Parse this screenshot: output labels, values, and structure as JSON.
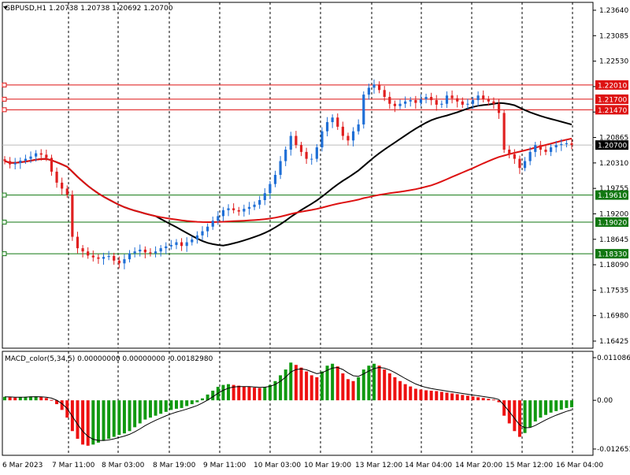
{
  "header": {
    "symbol_info": "GBPUSD,H1  1.20738 1.20738 1.20692 1.20700",
    "indicator_info": "MACD_color(5,34,5) 0.00000000 0.00000000 -0.00182980"
  },
  "colors": {
    "background": "#ffffff",
    "grid": "#000000",
    "bull_candle": "#1f6fd6",
    "bear_candle": "#e02020",
    "ma_slow": "#000000",
    "ma_long": "#dd1111",
    "resistance_line": "#dd1111",
    "support_line": "#117711",
    "hist_up": "#119911",
    "hist_down": "#ee1111",
    "signal": "#000000"
  },
  "price_scale": {
    "ticks": [
      "1.23640",
      "1.23085",
      "1.22530",
      "1.21975",
      "1.21420",
      "1.20865",
      "1.20310",
      "1.19755",
      "1.19200",
      "1.18645",
      "1.18090",
      "1.17535",
      "1.16980",
      "1.16425"
    ],
    "current_label": "1.20700",
    "current_value": 1.207
  },
  "levels": [
    {
      "value": 1.2201,
      "label": "1.22010",
      "kind": "resistance"
    },
    {
      "value": 1.217,
      "label": "1.21700",
      "kind": "resistance"
    },
    {
      "value": 1.2147,
      "label": "1.21470",
      "kind": "resistance"
    },
    {
      "value": 1.1961,
      "label": "1.19610",
      "kind": "support"
    },
    {
      "value": 1.1902,
      "label": "1.19020",
      "kind": "support"
    },
    {
      "value": 1.1833,
      "label": "1.18330",
      "kind": "support"
    }
  ],
  "macd_scale": {
    "ticks": [
      "0.0110869",
      "0.00",
      "-0.0126537"
    ],
    "values": [
      0.0110869,
      0.0,
      -0.0126537
    ]
  },
  "time_axis": {
    "labels": [
      "6 Mar 2023",
      "7 Mar 11:00",
      "8 Mar 03:00",
      "8 Mar 19:00",
      "9 Mar 11:00",
      "10 Mar 03:00",
      "10 Mar 19:00",
      "13 Mar 12:00",
      "14 Mar 04:00",
      "14 Mar 20:00",
      "15 Mar 12:00",
      "16 Mar 04:00"
    ]
  },
  "chart_data": {
    "type": "candlestick",
    "symbol": "GBPUSD",
    "timeframe": "H1",
    "ylim": [
      1.16425,
      1.2364
    ],
    "series_close": [
      1.2035,
      1.2028,
      1.2031,
      1.2036,
      1.204,
      1.2045,
      1.2052,
      1.2049,
      1.2042,
      1.2012,
      1.1988,
      1.1975,
      1.1962,
      1.187,
      1.1845,
      1.1838,
      1.1829,
      1.1825,
      1.1822,
      1.1826,
      1.1828,
      1.1818,
      1.1812,
      1.1821,
      1.1834,
      1.1838,
      1.1842,
      1.1836,
      1.1834,
      1.1838,
      1.1845,
      1.1849,
      1.1852,
      1.1858,
      1.185,
      1.1858,
      1.1864,
      1.1873,
      1.1882,
      1.1892,
      1.1905,
      1.1915,
      1.1928,
      1.1932,
      1.1928,
      1.1925,
      1.1931,
      1.1935,
      1.194,
      1.195,
      1.1965,
      1.1985,
      1.2005,
      1.2035,
      1.206,
      1.209,
      1.207,
      1.2055,
      1.204,
      1.204,
      1.2065,
      1.21,
      1.212,
      1.213,
      1.211,
      1.209,
      1.208,
      1.21,
      1.2115,
      1.218,
      1.2195,
      1.2202,
      1.219,
      1.2175,
      1.216,
      1.2155,
      1.216,
      1.2165,
      1.2168,
      1.2162,
      1.217,
      1.2175,
      1.2168,
      1.2158,
      1.216,
      1.2178,
      1.2172,
      1.2165,
      1.2158,
      1.216,
      1.2168,
      1.2178,
      1.217,
      1.2165,
      1.216,
      1.214,
      1.206,
      1.205,
      1.204,
      1.202,
      1.2035,
      1.2055,
      1.207,
      1.206,
      1.2055,
      1.2065,
      1.207,
      1.2072,
      1.2074,
      1.207
    ],
    "ma_slow_label": "",
    "ma_long_label": "",
    "macd": {
      "name": "MACD_color(5,34,5)",
      "main": 0.0,
      "signal": 0.0,
      "histogram_last": -0.0018298,
      "histogram": [
        0.0009,
        0.0008,
        0.0007,
        0.0008,
        0.0009,
        0.001,
        0.001,
        0.0009,
        0.0006,
        0.0001,
        -0.001,
        -0.0025,
        -0.0045,
        -0.008,
        -0.01,
        -0.0115,
        -0.0118,
        -0.0115,
        -0.011,
        -0.0105,
        -0.01,
        -0.0095,
        -0.009,
        -0.0086,
        -0.008,
        -0.007,
        -0.006,
        -0.005,
        -0.0045,
        -0.004,
        -0.0035,
        -0.003,
        -0.0025,
        -0.0022,
        -0.002,
        -0.0015,
        -0.001,
        -0.0005,
        0.0005,
        0.0015,
        0.0025,
        0.0035,
        0.004,
        0.0042,
        0.004,
        0.0038,
        0.0036,
        0.0035,
        0.0033,
        0.0032,
        0.0035,
        0.004,
        0.005,
        0.0065,
        0.008,
        0.0098,
        0.0092,
        0.0085,
        0.0075,
        0.0065,
        0.006,
        0.0075,
        0.009,
        0.0095,
        0.0088,
        0.007,
        0.0055,
        0.005,
        0.006,
        0.008,
        0.009,
        0.0095,
        0.009,
        0.008,
        0.007,
        0.006,
        0.005,
        0.0042,
        0.0036,
        0.003,
        0.0028,
        0.0026,
        0.0025,
        0.0024,
        0.0022,
        0.002,
        0.0018,
        0.0016,
        0.0014,
        0.0012,
        0.001,
        0.0008,
        0.0006,
        0.0004,
        0.0002,
        -0.0005,
        -0.004,
        -0.006,
        -0.008,
        -0.0095,
        -0.0085,
        -0.007,
        -0.0055,
        -0.0045,
        -0.0038,
        -0.0032,
        -0.0028,
        -0.0024,
        -0.002,
        -0.0018
      ]
    }
  }
}
